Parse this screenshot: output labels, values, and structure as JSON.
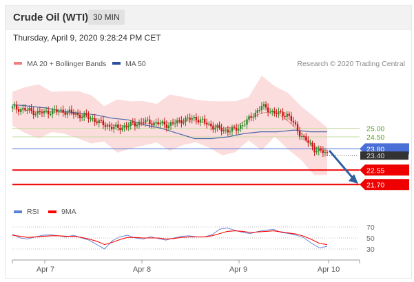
{
  "header": {
    "title": "Crude Oil (WTI)",
    "timeframe": "30 MIN"
  },
  "timestamp": "Thursday, April 9, 2020 9:28:24 PM CET",
  "legend": {
    "items": [
      {
        "label": "MA 20 + Bollinger Bands",
        "color": "#f08080"
      },
      {
        "label": "MA 50",
        "color": "#2e4f9e"
      }
    ],
    "copyright": "Research © 2020 Trading Central"
  },
  "rsi_legend": {
    "items": [
      {
        "label": "RSI",
        "color": "#5a7fd6"
      },
      {
        "label": "9MA",
        "color": "#ff0000"
      }
    ]
  },
  "colors": {
    "candle_up": "#2a8a2a",
    "candle_down": "#cc1111",
    "band_fill": "#fbd5d5",
    "ma50": "#4a6aa8",
    "ma20": "#e88",
    "resistance": "#c6d9a0",
    "pivot": "#4a6fd6",
    "support": "#ee0000",
    "arrow": "#2f5f9e",
    "current": "#333333"
  },
  "chart_data": [
    {
      "type": "candlestick",
      "x_labels": [
        "Apr 7",
        "Apr 8",
        "Apr 9",
        "Apr 10"
      ],
      "ylim": [
        20.5,
        28.5
      ],
      "levels": [
        {
          "label": "25.00",
          "value": 25.0,
          "kind": "resistance"
        },
        {
          "label": "24.50",
          "value": 24.5,
          "kind": "resistance"
        },
        {
          "label": "23.80",
          "value": 23.8,
          "kind": "pivot"
        },
        {
          "label": "23.40",
          "value": 23.4,
          "kind": "current"
        },
        {
          "label": "22.55",
          "value": 22.55,
          "kind": "support"
        },
        {
          "label": "21.70",
          "value": 21.7,
          "kind": "support"
        }
      ],
      "close_path": [
        26.2,
        26.1,
        25.9,
        26.0,
        26.0,
        25.8,
        25.6,
        25.2,
        25.0,
        25.2,
        25.4,
        25.3,
        25.2,
        25.5,
        25.6,
        25.2,
        24.9,
        24.9,
        25.5,
        26.3,
        25.9,
        25.8,
        24.6,
        23.8,
        23.5
      ],
      "ma50_path": [
        26.4,
        26.3,
        26.2,
        26.0,
        25.9,
        25.8,
        25.6,
        25.5,
        25.2,
        25.0,
        24.7,
        24.4,
        24.4,
        24.5,
        24.7,
        24.8,
        24.8,
        24.9,
        24.8,
        24.8
      ]
    },
    {
      "type": "line",
      "title": "RSI",
      "ticks": [
        "70",
        "50",
        "30"
      ],
      "ylim": [
        20,
        80
      ],
      "series": [
        {
          "name": "RSI",
          "values": [
            57,
            50,
            48,
            52,
            55,
            56,
            54,
            52,
            55,
            50,
            46,
            38,
            30,
            45,
            52,
            55,
            50,
            48,
            52,
            49,
            46,
            50,
            53,
            54,
            52,
            52,
            56,
            66,
            68,
            64,
            60,
            58,
            62,
            64,
            66,
            60,
            58,
            55,
            50,
            40,
            32,
            35
          ]
        },
        {
          "name": "9MA",
          "values": [
            55,
            53,
            51,
            52,
            53,
            54,
            54,
            53,
            53,
            51,
            48,
            44,
            38,
            42,
            47,
            51,
            51,
            50,
            50,
            50,
            48,
            49,
            51,
            52,
            52,
            52,
            54,
            58,
            62,
            63,
            62,
            60,
            61,
            62,
            63,
            61,
            59,
            57,
            53,
            47,
            40,
            38
          ]
        }
      ]
    }
  ]
}
